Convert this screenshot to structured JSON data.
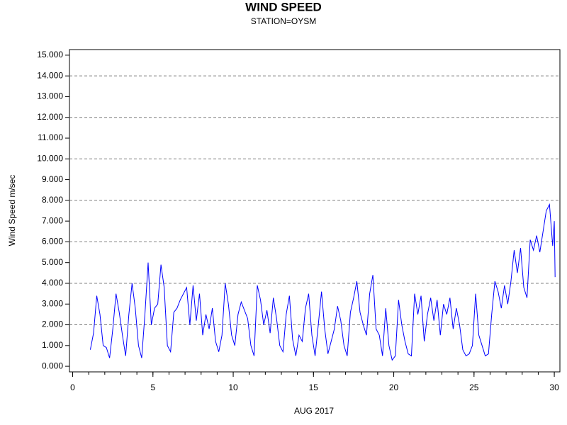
{
  "chart_data": {
    "type": "line",
    "title": "WIND SPEED",
    "subtitle": "STATION=OYSM",
    "x_label": "AUG 2017",
    "y_label": "Wind Speed m/sec",
    "xlim": [
      -0.2,
      30.35
    ],
    "ylim": [
      -0.27,
      15.27
    ],
    "xticks": [
      0,
      5,
      10,
      15,
      20,
      25,
      30
    ],
    "xminorticks": [
      0,
      1,
      2,
      3,
      4,
      5,
      6,
      7,
      8,
      9,
      10,
      11,
      12,
      13,
      14,
      15,
      16,
      17,
      18,
      19,
      20,
      21,
      22,
      23,
      24,
      25,
      26,
      27,
      28,
      29,
      30
    ],
    "yticks": [
      {
        "value": 0,
        "label": "0.000"
      },
      {
        "value": 1,
        "label": "1.000"
      },
      {
        "value": 2,
        "label": "2.000"
      },
      {
        "value": 3,
        "label": "3.000"
      },
      {
        "value": 4,
        "label": "4.000"
      },
      {
        "value": 5,
        "label": "5.000"
      },
      {
        "value": 6,
        "label": "6.000"
      },
      {
        "value": 7,
        "label": "7.000"
      },
      {
        "value": 8,
        "label": "8.000"
      },
      {
        "value": 9,
        "label": "9.000"
      },
      {
        "value": 10,
        "label": "10.000"
      },
      {
        "value": 11,
        "label": "11.000"
      },
      {
        "value": 12,
        "label": "12.000"
      },
      {
        "value": 13,
        "label": "13.000"
      },
      {
        "value": 14,
        "label": "14.000"
      },
      {
        "value": 15,
        "label": "15.000"
      }
    ],
    "ygrid": [
      2,
      4,
      6,
      8,
      10,
      12,
      14
    ],
    "color": "#0000ff",
    "x": [
      1.1,
      1.3,
      1.5,
      1.7,
      1.9,
      2.1,
      2.3,
      2.5,
      2.7,
      2.9,
      3.1,
      3.3,
      3.5,
      3.7,
      3.9,
      4.1,
      4.3,
      4.5,
      4.7,
      4.9,
      5.1,
      5.3,
      5.5,
      5.7,
      5.9,
      6.1,
      6.3,
      6.5,
      6.7,
      6.9,
      7.1,
      7.3,
      7.5,
      7.7,
      7.9,
      8.1,
      8.3,
      8.5,
      8.7,
      8.9,
      9.1,
      9.3,
      9.5,
      9.7,
      9.9,
      10.1,
      10.3,
      10.5,
      10.7,
      10.9,
      11.1,
      11.3,
      11.5,
      11.7,
      11.9,
      12.1,
      12.3,
      12.5,
      12.7,
      12.9,
      13.1,
      13.3,
      13.5,
      13.7,
      13.9,
      14.1,
      14.3,
      14.5,
      14.7,
      14.9,
      15.1,
      15.3,
      15.5,
      15.7,
      15.9,
      16.1,
      16.3,
      16.5,
      16.7,
      16.9,
      17.1,
      17.3,
      17.5,
      17.7,
      17.9,
      18.1,
      18.3,
      18.5,
      18.7,
      18.9,
      19.1,
      19.3,
      19.5,
      19.7,
      19.9,
      20.1,
      20.3,
      20.5,
      20.7,
      20.9,
      21.1,
      21.3,
      21.5,
      21.7,
      21.9,
      22.1,
      22.3,
      22.5,
      22.7,
      22.9,
      23.1,
      23.3,
      23.5,
      23.7,
      23.9,
      24.1,
      24.3,
      24.5,
      24.7,
      24.9,
      25.1,
      25.3,
      25.5,
      25.7,
      25.9,
      26.1,
      26.3,
      26.5,
      26.7,
      26.9,
      27.1,
      27.3,
      27.5,
      27.7,
      27.9,
      28.1,
      28.3,
      28.5,
      28.7,
      28.9,
      29.1,
      29.3,
      29.5,
      29.7,
      29.9,
      30.0,
      30.05
    ],
    "values": [
      0.8,
      1.6,
      3.4,
      2.5,
      1.0,
      0.9,
      0.4,
      1.8,
      3.5,
      2.6,
      1.5,
      0.5,
      2.5,
      4.0,
      2.8,
      1.0,
      0.4,
      2.5,
      5.0,
      2.0,
      2.8,
      3.0,
      4.9,
      3.8,
      1.0,
      0.7,
      2.6,
      2.8,
      3.2,
      3.5,
      3.8,
      2.0,
      3.9,
      2.2,
      3.5,
      1.5,
      2.5,
      1.8,
      2.8,
      1.2,
      0.7,
      1.5,
      4.0,
      3.0,
      1.5,
      1.0,
      2.5,
      3.1,
      2.7,
      2.3,
      1.0,
      0.5,
      3.9,
      3.2,
      2.0,
      2.7,
      1.6,
      3.3,
      2.3,
      1.0,
      0.7,
      2.5,
      3.4,
      1.3,
      0.5,
      1.5,
      1.2,
      2.8,
      3.5,
      1.5,
      0.5,
      2.0,
      3.6,
      1.8,
      0.6,
      1.2,
      1.8,
      2.9,
      2.2,
      1.0,
      0.5,
      2.6,
      3.3,
      4.1,
      2.6,
      2.0,
      1.5,
      3.5,
      4.4,
      1.8,
      1.5,
      0.5,
      2.8,
      1.0,
      0.3,
      0.5,
      3.2,
      2.0,
      1.2,
      0.6,
      0.5,
      3.5,
      2.5,
      3.4,
      1.2,
      2.5,
      3.3,
      2.2,
      3.2,
      1.5,
      3.0,
      2.5,
      3.3,
      1.8,
      2.8,
      2.0,
      0.8,
      0.5,
      0.6,
      1.0,
      3.5,
      1.5,
      1.0,
      0.5,
      0.6,
      2.5,
      4.1,
      3.6,
      2.8,
      3.9,
      3.0,
      4.1,
      5.6,
      4.5,
      5.7,
      3.8,
      3.3,
      6.1,
      5.6,
      6.3,
      5.5,
      6.5,
      7.5,
      7.8,
      5.8,
      7.0,
      4.3
    ]
  }
}
